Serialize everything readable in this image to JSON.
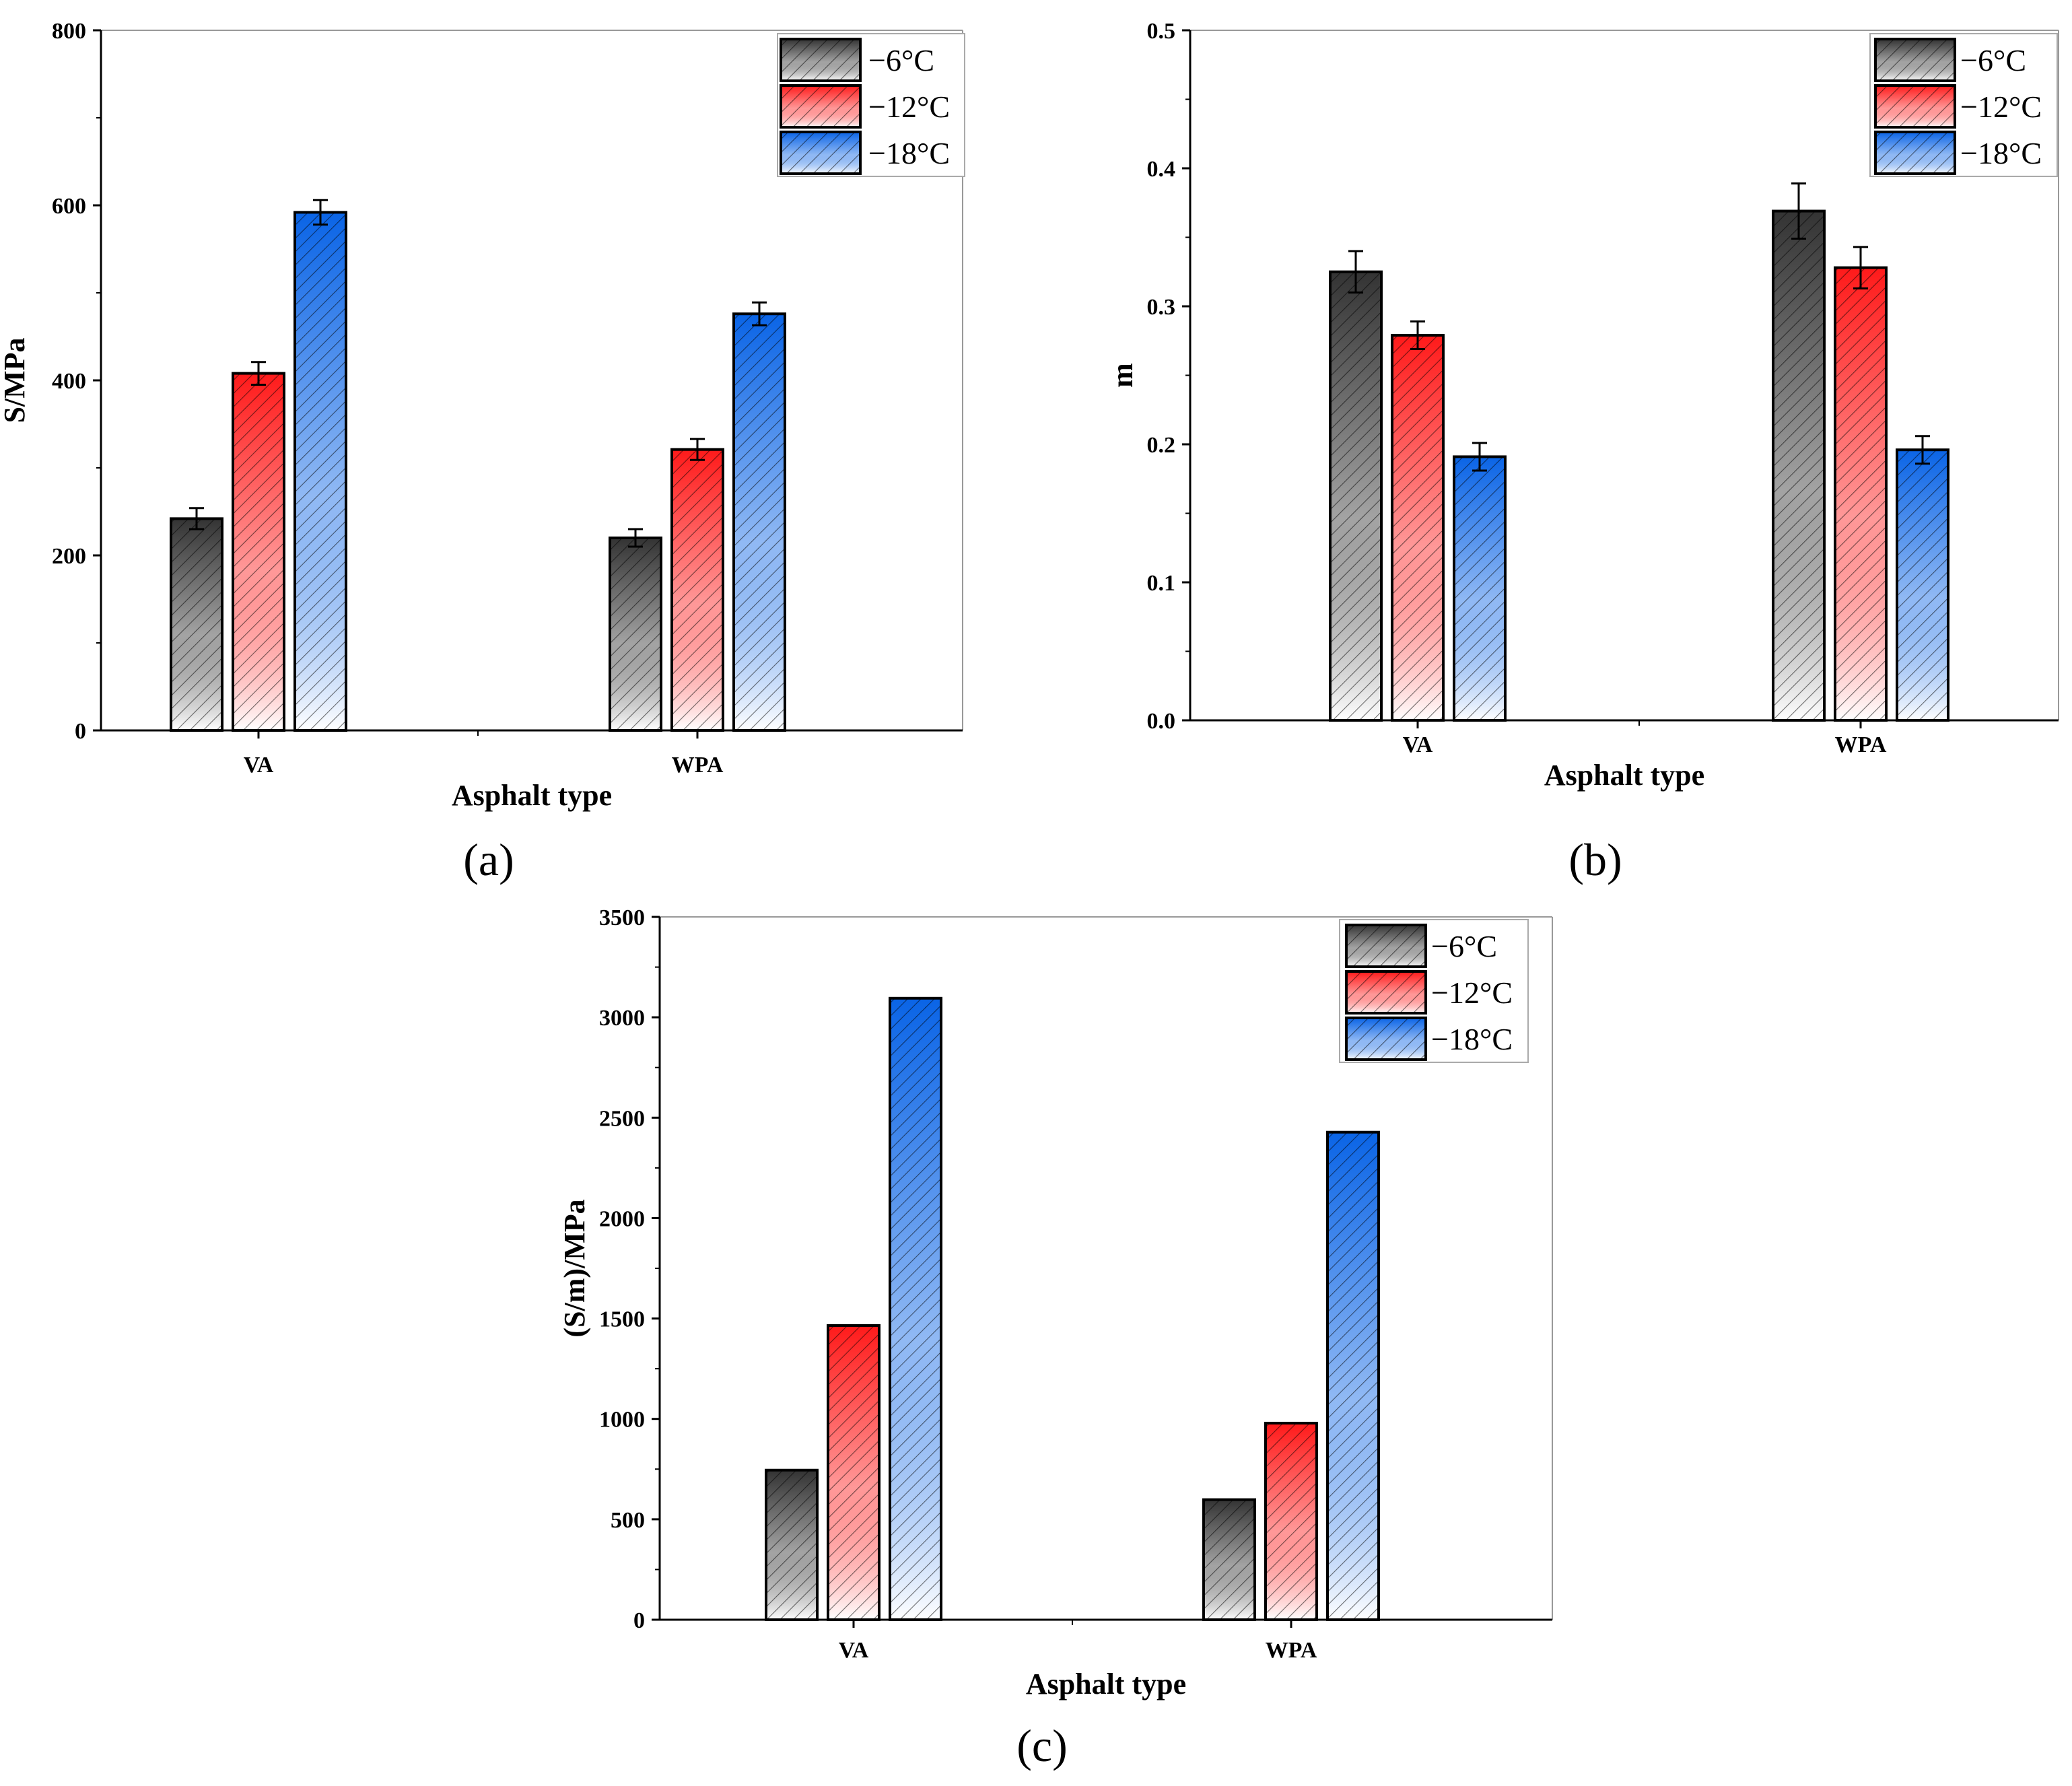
{
  "chart_data": [
    {
      "panel_label": "(a)",
      "type": "bar",
      "categories": [
        "VA",
        "WPA"
      ],
      "series": [
        {
          "name": "−6°C",
          "color": "#333333",
          "values": [
            242,
            220
          ],
          "errors": [
            12,
            10
          ]
        },
        {
          "name": "−12°C",
          "color": "#ff1a1a",
          "values": [
            408,
            321
          ],
          "errors": [
            13,
            12
          ]
        },
        {
          "name": "−18°C",
          "color": "#0a64e6",
          "values": [
            592,
            476
          ],
          "errors": [
            14,
            13
          ]
        }
      ],
      "xlabel": "Asphalt type",
      "ylabel": "S/MPa",
      "ylim": [
        0,
        800
      ],
      "yticks": [
        0,
        200,
        400,
        600,
        800
      ],
      "ytick_labels": [
        "0",
        "200",
        "400",
        "600",
        "800"
      ],
      "legend_position": "top-right",
      "grid": false
    },
    {
      "panel_label": "(b)",
      "type": "bar",
      "categories": [
        "VA",
        "WPA"
      ],
      "series": [
        {
          "name": "−6°C",
          "color": "#333333",
          "values": [
            0.325,
            0.369
          ],
          "errors": [
            0.015,
            0.02
          ]
        },
        {
          "name": "−12°C",
          "color": "#ff1a1a",
          "values": [
            0.279,
            0.328
          ],
          "errors": [
            0.01,
            0.015
          ]
        },
        {
          "name": "−18°C",
          "color": "#0a64e6",
          "values": [
            0.191,
            0.196
          ],
          "errors": [
            0.01,
            0.01
          ]
        }
      ],
      "xlabel": "Asphalt type",
      "ylabel": "m",
      "ylim": [
        0,
        0.5
      ],
      "yticks": [
        0,
        0.1,
        0.2,
        0.3,
        0.4,
        0.5
      ],
      "ytick_labels": [
        "0.0",
        "0.1",
        "0.2",
        "0.3",
        "0.4",
        "0.5"
      ],
      "legend_position": "top-right",
      "grid": false
    },
    {
      "panel_label": "(c)",
      "type": "bar",
      "categories": [
        "VA",
        "WPA"
      ],
      "series": [
        {
          "name": "−6°C",
          "color": "#333333",
          "values": [
            745,
            598
          ]
        },
        {
          "name": "−12°C",
          "color": "#ff1a1a",
          "values": [
            1465,
            979
          ]
        },
        {
          "name": "−18°C",
          "color": "#0a64e6",
          "values": [
            3095,
            2428
          ]
        }
      ],
      "xlabel": "Asphalt type",
      "ylabel": "(S/m)/MPa",
      "ylim": [
        0,
        3500
      ],
      "yticks": [
        0,
        500,
        1000,
        1500,
        2000,
        2500,
        3000,
        3500
      ],
      "ytick_labels": [
        "0",
        "500",
        "1000",
        "1500",
        "2000",
        "2500",
        "3000",
        "3500"
      ],
      "legend_position": "top-right",
      "grid": false
    }
  ]
}
